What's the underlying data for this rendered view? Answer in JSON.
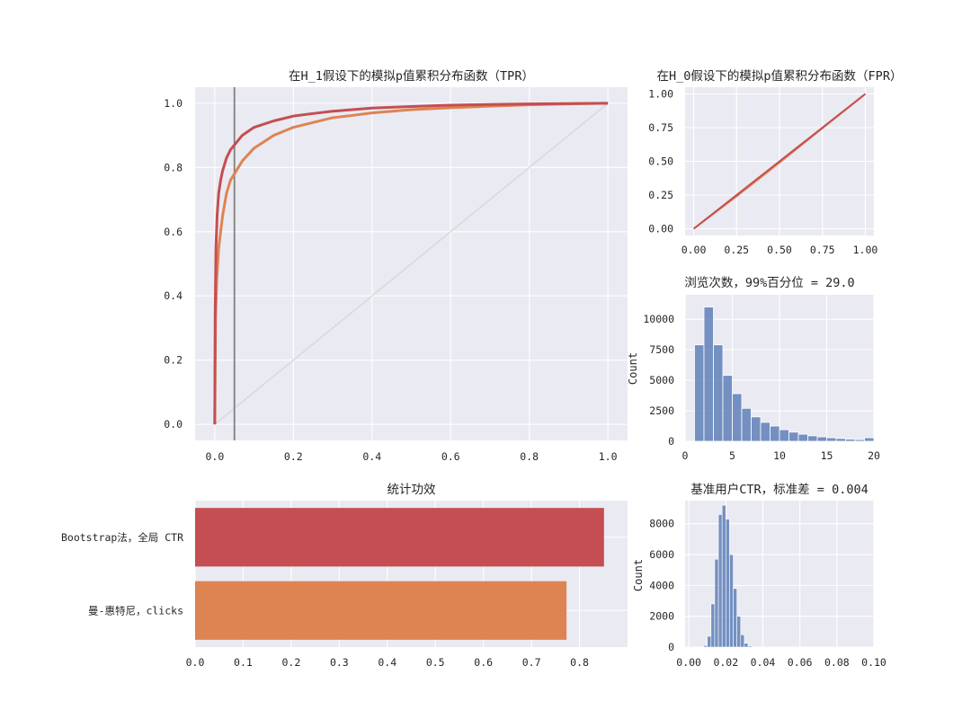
{
  "colors": {
    "panel_bg": "#eaeaf2",
    "grid": "#ffffff",
    "red": "#c44e52",
    "orange": "#dd8452",
    "blue": "#4c72b0",
    "diagonal": "#d9d9d9",
    "vline": "#808080"
  },
  "chart_data": [
    {
      "id": "tpr",
      "type": "line",
      "title": "在H_1假设下的模拟p值累积分布函数（TPR）",
      "xlim": [
        -0.05,
        1.05
      ],
      "ylim": [
        -0.05,
        1.05
      ],
      "xticks": [
        "0.0",
        "0.2",
        "0.4",
        "0.6",
        "0.8",
        "1.0"
      ],
      "yticks": [
        "0.0",
        "0.2",
        "0.4",
        "0.6",
        "0.8",
        "1.0"
      ],
      "vline_x": 0.05,
      "reference_diagonal": true,
      "series": [
        {
          "color": "orange",
          "x": [
            0,
            0.002,
            0.005,
            0.01,
            0.02,
            0.03,
            0.04,
            0.05,
            0.07,
            0.1,
            0.15,
            0.2,
            0.25,
            0.3,
            0.35,
            0.4,
            0.5,
            0.6,
            0.7,
            0.8,
            0.9,
            1.0
          ],
          "y": [
            0,
            0.33,
            0.45,
            0.55,
            0.65,
            0.72,
            0.76,
            0.78,
            0.82,
            0.86,
            0.9,
            0.925,
            0.94,
            0.955,
            0.962,
            0.97,
            0.98,
            0.986,
            0.991,
            0.995,
            0.998,
            1.0
          ]
        },
        {
          "color": "red",
          "x": [
            0,
            0.001,
            0.003,
            0.006,
            0.01,
            0.015,
            0.02,
            0.03,
            0.04,
            0.05,
            0.07,
            0.1,
            0.15,
            0.2,
            0.25,
            0.3,
            0.4,
            0.5,
            0.6,
            0.7,
            0.8,
            1.0
          ],
          "y": [
            0,
            0.34,
            0.55,
            0.65,
            0.72,
            0.76,
            0.79,
            0.83,
            0.855,
            0.87,
            0.9,
            0.925,
            0.945,
            0.96,
            0.968,
            0.975,
            0.985,
            0.99,
            0.994,
            0.996,
            0.998,
            1.0
          ]
        }
      ]
    },
    {
      "id": "fpr",
      "type": "line",
      "title": "在H_0假设下的模拟p值累积分布函数（FPR）",
      "xlim": [
        -0.05,
        1.05
      ],
      "ylim": [
        -0.05,
        1.05
      ],
      "xticks": [
        "0.00",
        "0.25",
        "0.50",
        "0.75",
        "1.00"
      ],
      "yticks": [
        "0.00",
        "0.25",
        "0.50",
        "0.75",
        "1.00"
      ],
      "series": [
        {
          "color": "orange",
          "x": [
            0,
            0.25,
            0.5,
            0.75,
            1.0
          ],
          "y": [
            0,
            0.24,
            0.49,
            0.745,
            1.0
          ]
        },
        {
          "color": "red",
          "x": [
            0,
            0.25,
            0.5,
            0.75,
            1.0
          ],
          "y": [
            0,
            0.25,
            0.5,
            0.75,
            1.0
          ]
        }
      ]
    },
    {
      "id": "views",
      "type": "bar",
      "title": "浏览次数，99%百分位 = 29.0",
      "ylabel": "Count",
      "xlim": [
        0,
        20
      ],
      "ylim": [
        0,
        12000
      ],
      "xticks": [
        "0",
        "5",
        "10",
        "15",
        "20"
      ],
      "yticks": [
        "0",
        "2500",
        "5000",
        "7500",
        "10000"
      ],
      "bins": [
        [
          1,
          2,
          7900
        ],
        [
          2,
          3,
          11000
        ],
        [
          3,
          4,
          7900
        ],
        [
          4,
          5,
          5400
        ],
        [
          5,
          6,
          3900
        ],
        [
          6,
          7,
          2700
        ],
        [
          7,
          8,
          2000
        ],
        [
          8,
          9,
          1550
        ],
        [
          9,
          10,
          1250
        ],
        [
          10,
          11,
          950
        ],
        [
          11,
          12,
          750
        ],
        [
          12,
          13,
          580
        ],
        [
          13,
          14,
          450
        ],
        [
          14,
          15,
          360
        ],
        [
          15,
          16,
          290
        ],
        [
          16,
          17,
          230
        ],
        [
          17,
          18,
          180
        ],
        [
          18,
          19,
          140
        ],
        [
          19,
          20,
          290
        ]
      ]
    },
    {
      "id": "power",
      "type": "bar",
      "orientation": "horizontal",
      "title": "统计功效",
      "xlim": [
        0,
        0.9
      ],
      "xticks": [
        "0.0",
        "0.1",
        "0.2",
        "0.3",
        "0.4",
        "0.5",
        "0.6",
        "0.7",
        "0.8"
      ],
      "categories": [
        "Bootstrap法，全局 CTR",
        "曼-惠特尼，clicks"
      ],
      "values": [
        0.851,
        0.773
      ],
      "bar_colors": [
        "red",
        "orange"
      ]
    },
    {
      "id": "ctr",
      "type": "bar",
      "title": "基准用户CTR，标准差 = 0.004",
      "ylabel": "Count",
      "xlim": [
        -0.002,
        0.1
      ],
      "ylim": [
        0,
        9500
      ],
      "xticks": [
        "0.00",
        "0.02",
        "0.04",
        "0.06",
        "0.08",
        "0.10"
      ],
      "yticks": [
        "0",
        "2000",
        "4000",
        "6000",
        "8000"
      ],
      "bins": [
        [
          0.008,
          0.01,
          100
        ],
        [
          0.01,
          0.012,
          700
        ],
        [
          0.012,
          0.014,
          2800
        ],
        [
          0.014,
          0.016,
          5700
        ],
        [
          0.016,
          0.018,
          8600
        ],
        [
          0.018,
          0.02,
          9200
        ],
        [
          0.02,
          0.022,
          8300
        ],
        [
          0.022,
          0.024,
          6000
        ],
        [
          0.024,
          0.026,
          3800
        ],
        [
          0.026,
          0.028,
          2000
        ],
        [
          0.028,
          0.03,
          800
        ],
        [
          0.03,
          0.032,
          250
        ],
        [
          0.032,
          0.034,
          80
        ]
      ]
    }
  ]
}
